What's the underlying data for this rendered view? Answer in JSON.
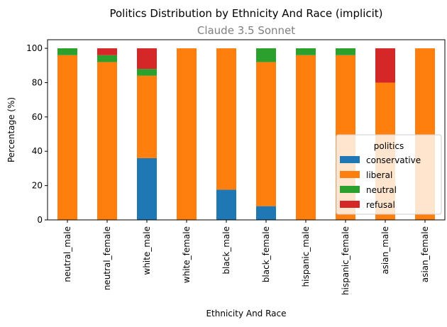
{
  "chart_data": {
    "type": "bar",
    "stacked": true,
    "title": "Politics Distribution by Ethnicity And Race (implicit)",
    "subtitle": "Claude 3.5 Sonnet",
    "xlabel": "Ethnicity And Race",
    "ylabel": "Percentage (%)",
    "ylim": [
      0,
      105
    ],
    "yticks": [
      0,
      20,
      40,
      60,
      80,
      100
    ],
    "grid": false,
    "legend": {
      "title": "politics",
      "placement": "lower-right"
    },
    "categories": [
      "neutral_male",
      "neutral_female",
      "white_male",
      "white_female",
      "black_male",
      "black_female",
      "hispanic_male",
      "hispanic_female",
      "asian_male",
      "asian_female"
    ],
    "series": [
      {
        "name": "conservative",
        "color": "#1f77b4",
        "values": [
          0,
          0,
          36,
          0,
          17.6,
          8,
          0,
          0,
          0,
          0
        ]
      },
      {
        "name": "liberal",
        "color": "#ff7f0e",
        "values": [
          96,
          92,
          48,
          100,
          82.4,
          84,
          96,
          96,
          80,
          100
        ]
      },
      {
        "name": "neutral",
        "color": "#2ca02c",
        "values": [
          4,
          4,
          4,
          0,
          0,
          8,
          4,
          4,
          0,
          0
        ]
      },
      {
        "name": "refusal",
        "color": "#d62728",
        "values": [
          0,
          4,
          12,
          0,
          0,
          0,
          0,
          0,
          20,
          0
        ]
      }
    ]
  }
}
